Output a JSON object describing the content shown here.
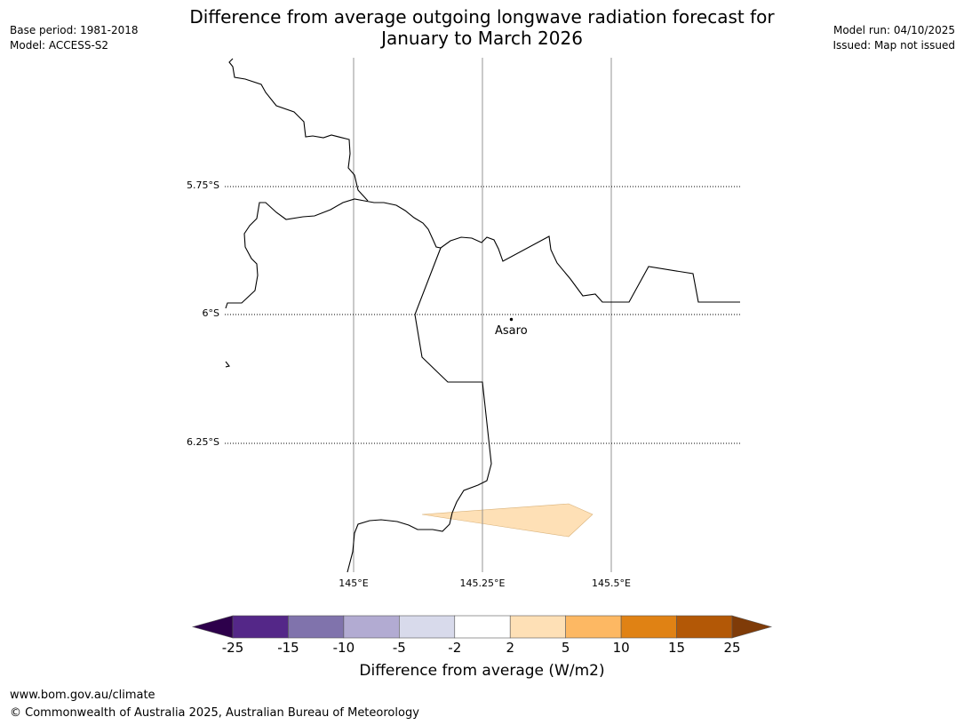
{
  "title_line1": "Difference from average outgoing longwave radiation forecast for",
  "title_line2": "January to March 2026",
  "base_period": "Base period: 1981-2018",
  "model": "Model: ACCESS-S2",
  "model_run": "Model run: 04/10/2025",
  "issued": "Issued: Map not issued",
  "lat_labels": [
    "5.75°S",
    "6°S",
    "6.25°S"
  ],
  "lon_labels": [
    "145°E",
    "145.25°E",
    "145.5°E"
  ],
  "place_name": "Asaro",
  "colorbar": {
    "label": "Difference from average (W/m2)",
    "ticks": [
      "-25",
      "-15",
      "-10",
      "-5",
      "-2",
      "2",
      "5",
      "10",
      "15",
      "25"
    ],
    "colors": [
      "#542788",
      "#8073ac",
      "#b2abd2",
      "#d8daeb",
      "#ffffff",
      "#fee0b6",
      "#fdb863",
      "#e08214",
      "#b35806"
    ],
    "under_color": "#2d004b",
    "over_color": "#7f3b08"
  },
  "map_fill_color": "#fee0b6",
  "footer_url": "www.bom.gov.au/climate",
  "footer_copyright": "© Commonwealth of Australia 2025, Australian Bureau of Meteorology"
}
